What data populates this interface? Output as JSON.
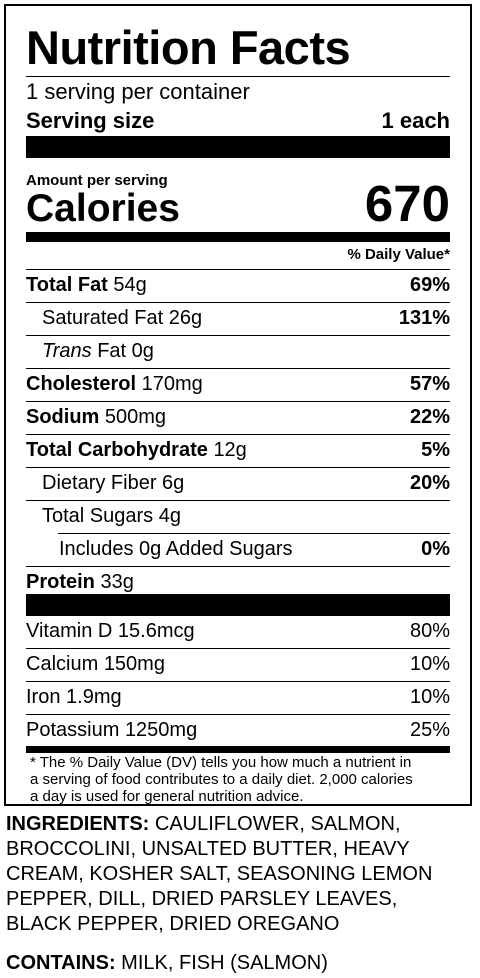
{
  "title": "Nutrition Facts",
  "servings_per_container": "1 serving per container",
  "serving_size_label": "Serving size",
  "serving_size_value": "1 each",
  "amount_per_serving": "Amount per serving",
  "calories_label": "Calories",
  "calories_value": "670",
  "daily_value_header": "% Daily Value*",
  "nutrients": [
    {
      "name": "Total Fat",
      "amount": "54g",
      "dv": "69%"
    },
    {
      "name": "Saturated Fat",
      "amount": "26g",
      "dv": "131%"
    },
    {
      "name": "Trans",
      "name_suffix": "Fat",
      "amount": "0g",
      "dv": ""
    },
    {
      "name": "Cholesterol",
      "amount": "170mg",
      "dv": "57%"
    },
    {
      "name": "Sodium",
      "amount": "500mg",
      "dv": "22%"
    },
    {
      "name": "Total Carbohydrate",
      "amount": "12g",
      "dv": "5%"
    },
    {
      "name": "Dietary Fiber",
      "amount": "6g",
      "dv": "20%"
    },
    {
      "name": "Total Sugars",
      "amount": "4g",
      "dv": ""
    },
    {
      "name": "Includes 0g Added Sugars",
      "amount": "",
      "dv": "0%"
    },
    {
      "name": "Protein",
      "amount": "33g",
      "dv": ""
    }
  ],
  "vitamins": [
    {
      "name": "Vitamin D",
      "amount": "15.6mcg",
      "dv": "80%"
    },
    {
      "name": "Calcium",
      "amount": "150mg",
      "dv": "10%"
    },
    {
      "name": "Iron",
      "amount": "1.9mg",
      "dv": "10%"
    },
    {
      "name": "Potassium",
      "amount": "1250mg",
      "dv": "25%"
    }
  ],
  "footnote_lines": [
    "* The % Daily Value (DV) tells you how much a nutrient in",
    "a serving of food contributes to a daily diet. 2,000 calories",
    "a day is used for general nutrition advice."
  ],
  "ingredients_label": "INGREDIENTS:",
  "ingredients_lines": [
    " CAULIFLOWER, SALMON,",
    "BROCCOLINI, UNSALTED BUTTER, HEAVY",
    "CREAM, KOSHER SALT, SEASONING LEMON",
    "PEPPER, DILL, DRIED PARSLEY LEAVES,",
    "BLACK PEPPER, DRIED OREGANO"
  ],
  "contains_label": "CONTAINS:",
  "contains_text": " MILK, FISH (SALMON)"
}
